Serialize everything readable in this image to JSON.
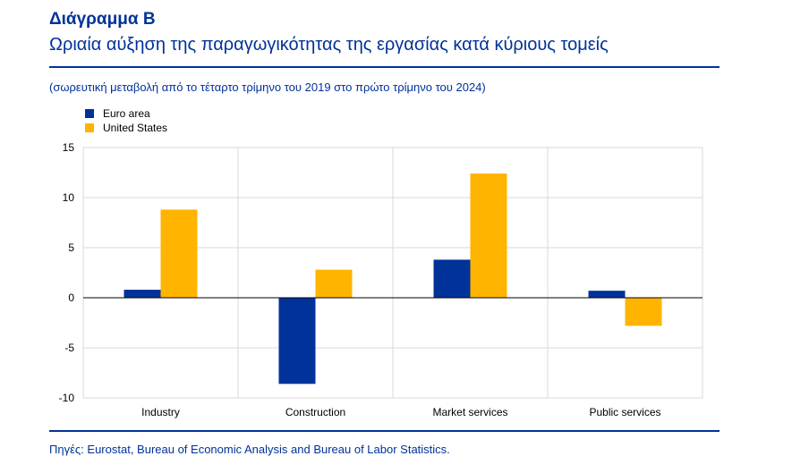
{
  "header": {
    "label": "Διάγραμμα Β",
    "title": "Ωριαία αύξηση της παραγωγικότητας της εργασίας κατά κύριους τομείς",
    "subtitle": "(σωρευτική μεταβολή από το τέταρτο τρίμηνο του 2019 στο πρώτο τρίμηνο του 2024)"
  },
  "footer": {
    "source": "Πηγές: Eurostat, Bureau of Economic Analysis and Bureau of Labor Statistics."
  },
  "chart_data": {
    "type": "bar",
    "categories": [
      "Industry",
      "Construction",
      "Market services",
      "Public services"
    ],
    "series": [
      {
        "name": "Euro area",
        "color": "#003299",
        "values": [
          0.8,
          -8.6,
          3.8,
          0.7
        ]
      },
      {
        "name": "United States",
        "color": "#FFB400",
        "values": [
          8.8,
          2.8,
          12.4,
          -2.8
        ]
      }
    ],
    "yticks": [
      15,
      10,
      5,
      0,
      -5,
      -10
    ],
    "ylim": [
      -10,
      15
    ],
    "legend_position": "top-left",
    "grid": true
  }
}
